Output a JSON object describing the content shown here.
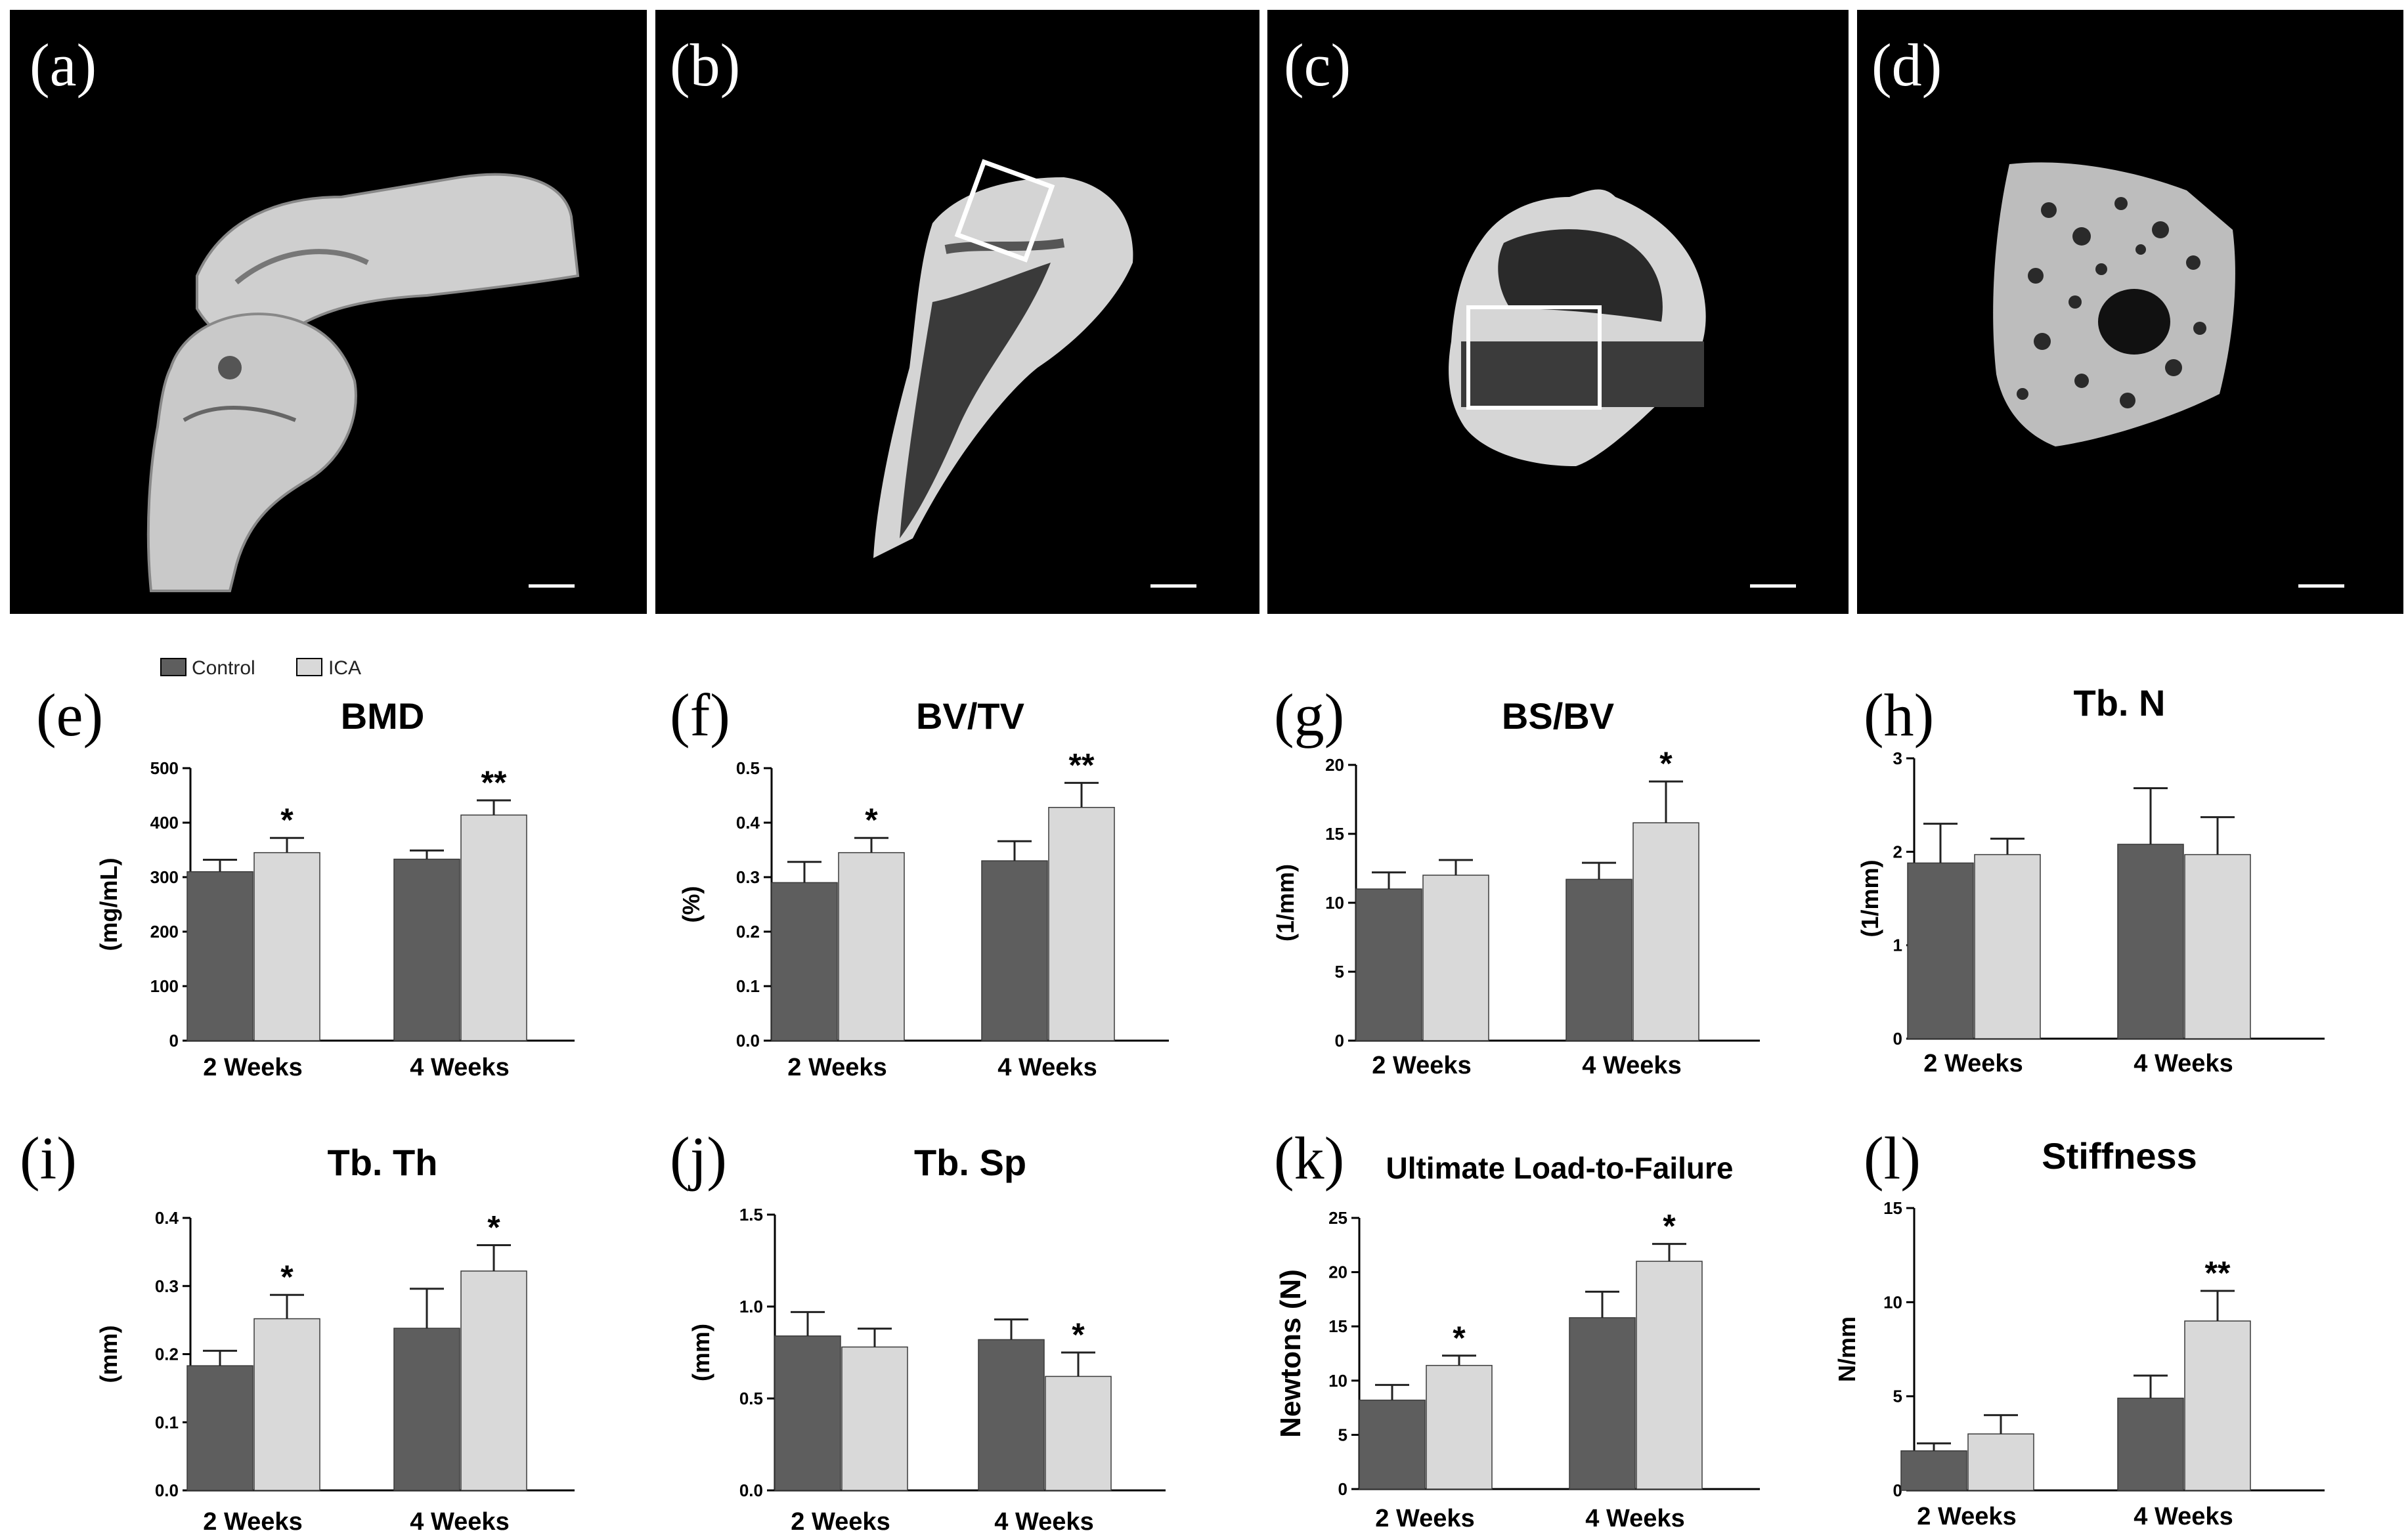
{
  "colors": {
    "control": "#5e5e5e",
    "ica": "#d9d9d9",
    "background": "#ffffff",
    "image_bg": "#000000",
    "bone": "#d4d4d4"
  },
  "legend": {
    "control": "Control",
    "ica": "ICA"
  },
  "image_panels": [
    {
      "label": "(a)",
      "icon": "bone-3d-render-icon"
    },
    {
      "label": "(b)",
      "icon": "bone-sagittal-section-icon"
    },
    {
      "label": "(c)",
      "icon": "bone-axial-section-icon"
    },
    {
      "label": "(d)",
      "icon": "trabecular-roi-icon"
    }
  ],
  "chart_data": [
    {
      "type": "bar",
      "panel": "(e)",
      "title": "BMD",
      "ylabel": "(mg/mL)",
      "categories": [
        "2 Weeks",
        "4 Weeks"
      ],
      "ylim": [
        0,
        500
      ],
      "yticks": [
        0,
        100,
        200,
        300,
        400,
        500
      ],
      "ytick_labels": [
        "0",
        "100",
        "200",
        "300",
        "400",
        "500"
      ],
      "series": [
        {
          "name": "Control",
          "values": [
            310,
            333
          ],
          "errors": [
            22,
            16
          ]
        },
        {
          "name": "ICA",
          "values": [
            345,
            414
          ],
          "errors": [
            27,
            27
          ]
        }
      ],
      "annotations": [
        "*",
        "**"
      ]
    },
    {
      "type": "bar",
      "panel": "(f)",
      "title": "BV/TV",
      "ylabel": "(%)",
      "categories": [
        "2 Weeks",
        "4 Weeks"
      ],
      "ylim": [
        0,
        0.5
      ],
      "yticks": [
        0,
        0.1,
        0.2,
        0.3,
        0.4,
        0.5
      ],
      "ytick_labels": [
        "0.0",
        "0.1",
        "0.2",
        "0.3",
        "0.4",
        "0.5"
      ],
      "series": [
        {
          "name": "Control",
          "values": [
            0.29,
            0.33
          ],
          "errors": [
            0.038,
            0.036
          ]
        },
        {
          "name": "ICA",
          "values": [
            0.345,
            0.428
          ],
          "errors": [
            0.027,
            0.045
          ]
        }
      ],
      "annotations": [
        "*",
        "**"
      ]
    },
    {
      "type": "bar",
      "panel": "(g)",
      "title": "BS/BV",
      "ylabel": "(1/mm)",
      "categories": [
        "2 Weeks",
        "4 Weeks"
      ],
      "ylim": [
        0,
        20
      ],
      "yticks": [
        0,
        5,
        10,
        15,
        20
      ],
      "ytick_labels": [
        "0",
        "5",
        "10",
        "15",
        "20"
      ],
      "series": [
        {
          "name": "Control",
          "values": [
            11.0,
            11.7
          ],
          "errors": [
            1.2,
            1.2
          ]
        },
        {
          "name": "ICA",
          "values": [
            12.0,
            15.8
          ],
          "errors": [
            1.1,
            3.0
          ]
        }
      ],
      "annotations": [
        "",
        "*"
      ]
    },
    {
      "type": "bar",
      "panel": "(h)",
      "title": "Tb. N",
      "ylabel": "(1/mm)",
      "categories": [
        "2 Weeks",
        "4 Weeks"
      ],
      "ylim": [
        0,
        3
      ],
      "yticks": [
        0,
        1,
        2,
        3
      ],
      "ytick_labels": [
        "0",
        "1",
        "2",
        "3"
      ],
      "series": [
        {
          "name": "Control",
          "values": [
            1.88,
            2.08
          ],
          "errors": [
            0.42,
            0.6
          ]
        },
        {
          "name": "ICA",
          "values": [
            1.97,
            1.97
          ],
          "errors": [
            0.17,
            0.4
          ]
        }
      ],
      "annotations": [
        "",
        ""
      ]
    },
    {
      "type": "bar",
      "panel": "(i)",
      "title": "Tb. Th",
      "ylabel": "(mm)",
      "categories": [
        "2 Weeks",
        "4 Weeks"
      ],
      "ylim": [
        0,
        0.4
      ],
      "yticks": [
        0,
        0.1,
        0.2,
        0.3,
        0.4
      ],
      "ytick_labels": [
        "0.0",
        "0.1",
        "0.2",
        "0.3",
        "0.4"
      ],
      "series": [
        {
          "name": "Control",
          "values": [
            0.183,
            0.238
          ],
          "errors": [
            0.022,
            0.058
          ]
        },
        {
          "name": "ICA",
          "values": [
            0.252,
            0.322
          ],
          "errors": [
            0.035,
            0.038
          ]
        }
      ],
      "annotations": [
        "*",
        "*"
      ]
    },
    {
      "type": "bar",
      "panel": "(j)",
      "title": "Tb. Sp",
      "ylabel": "(mm)",
      "categories": [
        "2 Weeks",
        "4 Weeks"
      ],
      "ylim": [
        0,
        1.5
      ],
      "yticks": [
        0,
        0.5,
        1.0,
        1.5
      ],
      "ytick_labels": [
        "0.0",
        "0.5",
        "1.0",
        "1.5"
      ],
      "series": [
        {
          "name": "Control",
          "values": [
            0.84,
            0.82
          ],
          "errors": [
            0.13,
            0.11
          ]
        },
        {
          "name": "ICA",
          "values": [
            0.78,
            0.62
          ],
          "errors": [
            0.1,
            0.13
          ]
        }
      ],
      "annotations": [
        "",
        "*"
      ]
    },
    {
      "type": "bar",
      "panel": "(k)",
      "title": "Ultimate Load-to-Failure",
      "ylabel": "Newtons (N)",
      "categories": [
        "2 Weeks",
        "4 Weeks"
      ],
      "ylim": [
        0,
        25
      ],
      "yticks": [
        0,
        5,
        10,
        15,
        20,
        25
      ],
      "ytick_labels": [
        "0",
        "5",
        "10",
        "15",
        "20",
        "25"
      ],
      "series": [
        {
          "name": "Control",
          "values": [
            8.2,
            15.8
          ],
          "errors": [
            1.4,
            2.4
          ]
        },
        {
          "name": "ICA",
          "values": [
            11.4,
            21.0
          ],
          "errors": [
            0.9,
            1.6
          ]
        }
      ],
      "annotations": [
        "*",
        "*"
      ]
    },
    {
      "type": "bar",
      "panel": "(l)",
      "title": "Stiffness",
      "ylabel": "N/mm",
      "categories": [
        "2 Weeks",
        "4 Weeks"
      ],
      "ylim": [
        0,
        15
      ],
      "yticks": [
        0,
        5,
        10,
        15
      ],
      "ytick_labels": [
        "0",
        "5",
        "10",
        "15"
      ],
      "series": [
        {
          "name": "Control",
          "values": [
            2.1,
            4.9
          ],
          "errors": [
            0.4,
            1.2
          ]
        },
        {
          "name": "ICA",
          "values": [
            3.0,
            9.0
          ],
          "errors": [
            1.0,
            1.6
          ]
        }
      ],
      "annotations": [
        "",
        "**"
      ]
    }
  ]
}
